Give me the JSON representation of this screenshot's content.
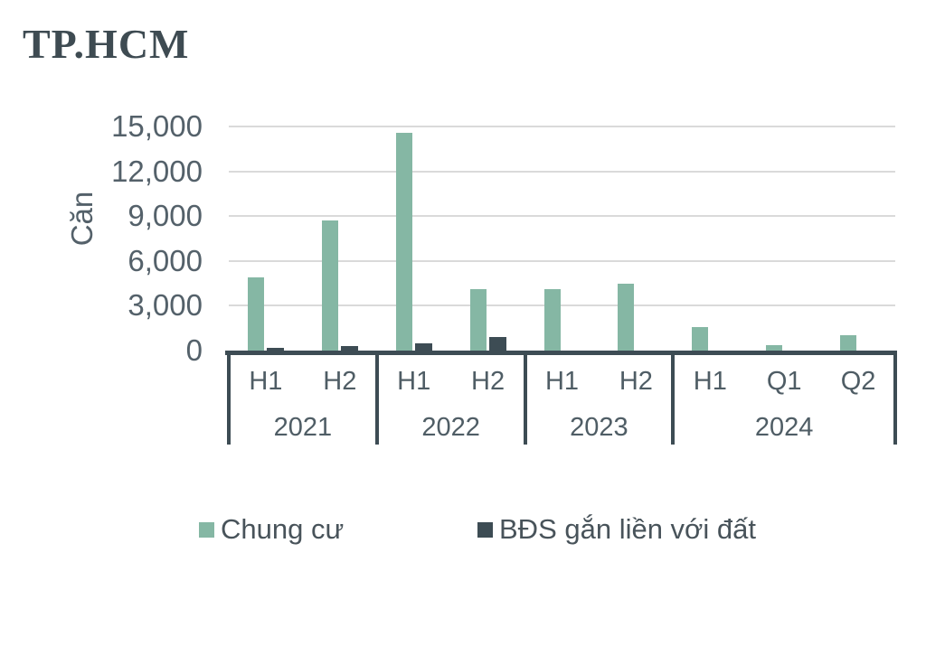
{
  "title": "TP.HCM",
  "chart_data": {
    "type": "bar",
    "title": "TP.HCM",
    "ylabel": "Căn",
    "ylim": [
      0,
      15000
    ],
    "ytick_step": 3000,
    "ytick_labels": [
      "0",
      "3,000",
      "6,000",
      "9,000",
      "12,000",
      "15,000"
    ],
    "grid": "horizontal",
    "legend_position": "bottom",
    "groups": [
      {
        "year": "2021",
        "periods": [
          "H1",
          "H2"
        ]
      },
      {
        "year": "2022",
        "periods": [
          "H1",
          "H2"
        ]
      },
      {
        "year": "2023",
        "periods": [
          "H1",
          "H2"
        ]
      },
      {
        "year": "2024",
        "periods": [
          "H1",
          "Q1",
          "Q2"
        ]
      }
    ],
    "series": [
      {
        "name": "Chung cư",
        "color": "#85b7a4",
        "values": [
          4900,
          8700,
          14600,
          4100,
          4100,
          4500,
          1600,
          350,
          1000
        ]
      },
      {
        "name": "BĐS gắn liền với đất",
        "color": "#3d4c54",
        "values": [
          200,
          300,
          500,
          900,
          0,
          0,
          0,
          0,
          0
        ]
      }
    ]
  },
  "colors": {
    "background": "#ffffff",
    "title_text": "#3e4b52",
    "axis_text": "#54616a",
    "gridline": "#dadada",
    "axis_frame": "#3d4c54",
    "series_green": "#85b7a4",
    "series_dark": "#3d4c54"
  }
}
